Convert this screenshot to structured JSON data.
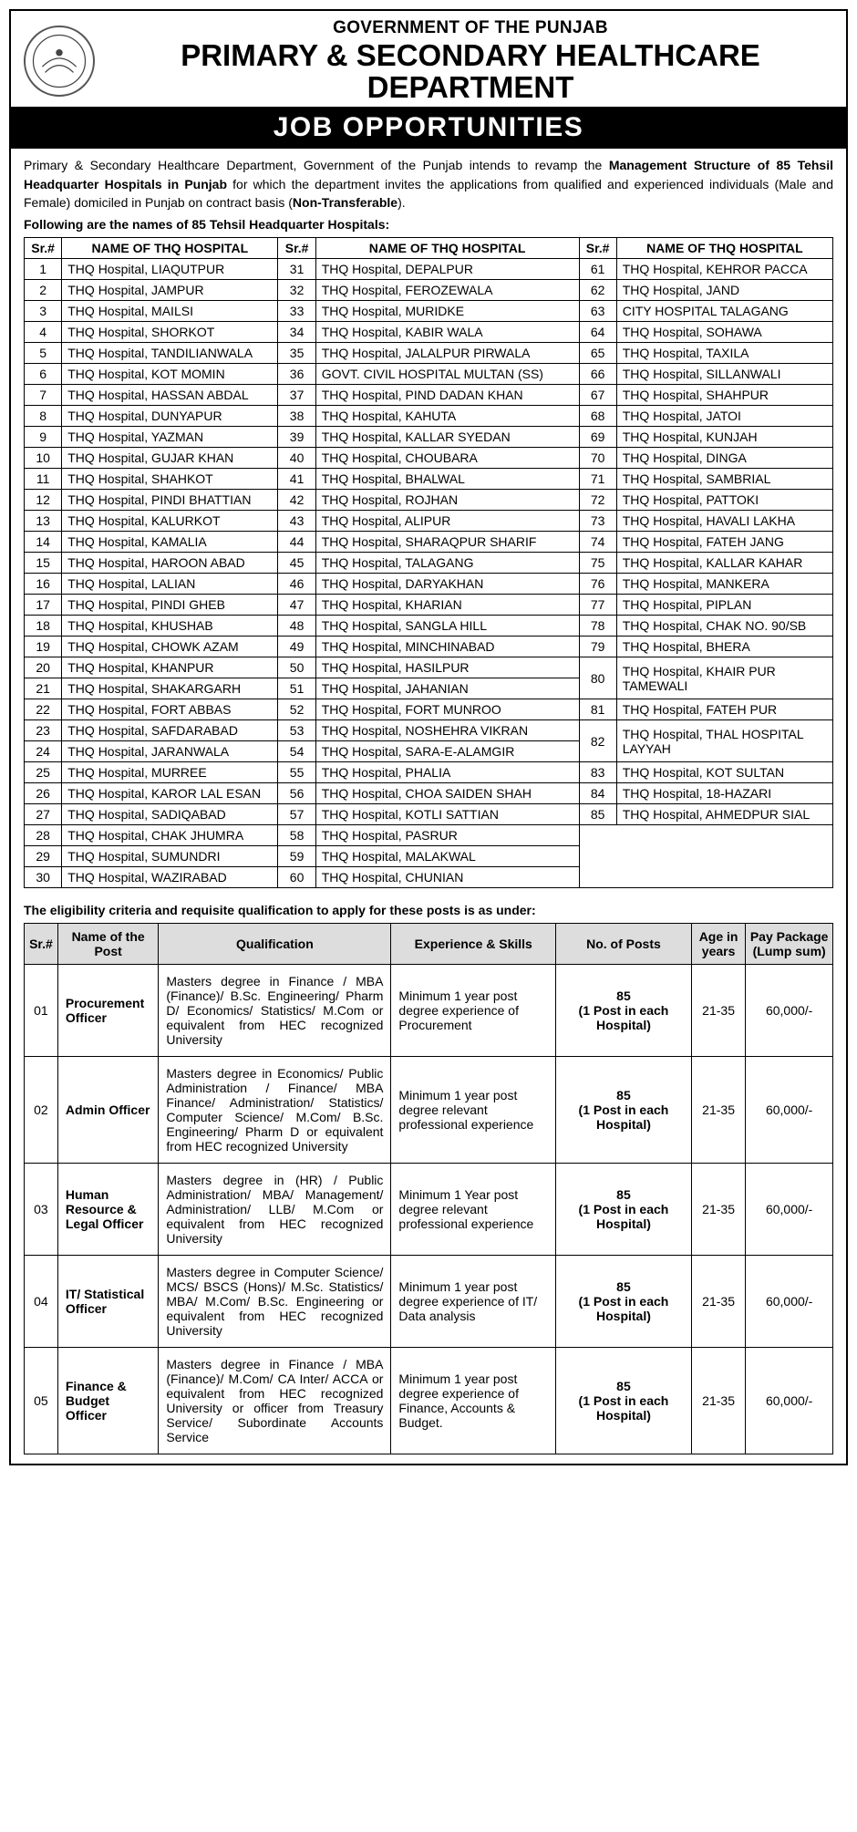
{
  "header": {
    "line1": "GOVERNMENT OF THE PUNJAB",
    "line2": "PRIMARY & SECONDARY HEALTHCARE",
    "line3": "DEPARTMENT",
    "banner": "JOB OPPORTUNITIES"
  },
  "intro_parts": {
    "p1": "Primary & Secondary Healthcare Department, Government of the Punjab intends to revamp the ",
    "b1": "Management Structure of 85 Tehsil Headquarter Hospitals in Punjab",
    "p2": " for which the department invites the applications from qualified and experienced individuals (Male and Female) domiciled in  Punjab on contract basis (",
    "b2": "Non-Transferable",
    "p3": ")."
  },
  "subhead": "Following are the names of 85 Tehsil Headquarter Hospitals:",
  "hosp_headers": {
    "sr": "Sr.#",
    "name": "NAME OF THQ HOSPITAL"
  },
  "hospitals_columns": {
    "col1": [
      {
        "sr": "1",
        "name": "THQ Hospital, LIAQUTPUR"
      },
      {
        "sr": "2",
        "name": "THQ Hospital, JAMPUR"
      },
      {
        "sr": "3",
        "name": "THQ Hospital, MAILSI"
      },
      {
        "sr": "4",
        "name": "THQ Hospital, SHORKOT"
      },
      {
        "sr": "5",
        "name": "THQ Hospital, TANDILIANWALA"
      },
      {
        "sr": "6",
        "name": "THQ Hospital, KOT MOMIN"
      },
      {
        "sr": "7",
        "name": "THQ Hospital, HASSAN ABDAL"
      },
      {
        "sr": "8",
        "name": "THQ Hospital, DUNYAPUR"
      },
      {
        "sr": "9",
        "name": "THQ Hospital, YAZMAN"
      },
      {
        "sr": "10",
        "name": "THQ Hospital, GUJAR KHAN"
      },
      {
        "sr": "11",
        "name": "THQ Hospital, SHAHKOT"
      },
      {
        "sr": "12",
        "name": "THQ Hospital, PINDI BHATTIAN"
      },
      {
        "sr": "13",
        "name": "THQ Hospital, KALURKOT"
      },
      {
        "sr": "14",
        "name": "THQ Hospital, KAMALIA"
      },
      {
        "sr": "15",
        "name": "THQ Hospital, HAROON ABAD"
      },
      {
        "sr": "16",
        "name": "THQ Hospital, LALIAN"
      },
      {
        "sr": "17",
        "name": "THQ Hospital, PINDI GHEB"
      },
      {
        "sr": "18",
        "name": "THQ Hospital, KHUSHAB"
      },
      {
        "sr": "19",
        "name": "THQ Hospital, CHOWK AZAM"
      },
      {
        "sr": "20",
        "name": "THQ Hospital, KHANPUR"
      },
      {
        "sr": "21",
        "name": "THQ Hospital, SHAKARGARH"
      },
      {
        "sr": "22",
        "name": "THQ Hospital, FORT ABBAS"
      },
      {
        "sr": "23",
        "name": "THQ Hospital, SAFDARABAD"
      },
      {
        "sr": "24",
        "name": "THQ Hospital, JARANWALA"
      },
      {
        "sr": "25",
        "name": "THQ Hospital, MURREE"
      },
      {
        "sr": "26",
        "name": "THQ Hospital, KAROR LAL ESAN"
      },
      {
        "sr": "27",
        "name": "THQ Hospital, SADIQABAD"
      },
      {
        "sr": "28",
        "name": "THQ Hospital, CHAK JHUMRA"
      },
      {
        "sr": "29",
        "name": "THQ Hospital, SUMUNDRI"
      },
      {
        "sr": "30",
        "name": "THQ Hospital, WAZIRABAD"
      }
    ],
    "col2": [
      {
        "sr": "31",
        "name": "THQ Hospital, DEPALPUR"
      },
      {
        "sr": "32",
        "name": "THQ Hospital, FEROZEWALA"
      },
      {
        "sr": "33",
        "name": "THQ Hospital, MURIDKE"
      },
      {
        "sr": "34",
        "name": "THQ Hospital, KABIR WALA"
      },
      {
        "sr": "35",
        "name": "THQ Hospital, JALALPUR PIRWALA"
      },
      {
        "sr": "36",
        "name": "GOVT. CIVIL HOSPITAL MULTAN (SS)"
      },
      {
        "sr": "37",
        "name": "THQ Hospital, PIND DADAN KHAN"
      },
      {
        "sr": "38",
        "name": "THQ Hospital, KAHUTA"
      },
      {
        "sr": "39",
        "name": "THQ Hospital, KALLAR SYEDAN"
      },
      {
        "sr": "40",
        "name": "THQ Hospital, CHOUBARA"
      },
      {
        "sr": "41",
        "name": "THQ Hospital, BHALWAL"
      },
      {
        "sr": "42",
        "name": "THQ Hospital, ROJHAN"
      },
      {
        "sr": "43",
        "name": "THQ Hospital, ALIPUR"
      },
      {
        "sr": "44",
        "name": "THQ Hospital, SHARAQPUR SHARIF"
      },
      {
        "sr": "45",
        "name": "THQ Hospital, TALAGANG"
      },
      {
        "sr": "46",
        "name": "THQ Hospital, DARYAKHAN"
      },
      {
        "sr": "47",
        "name": "THQ Hospital, KHARIAN"
      },
      {
        "sr": "48",
        "name": "THQ Hospital, SANGLA HILL"
      },
      {
        "sr": "49",
        "name": "THQ Hospital, MINCHINABAD"
      },
      {
        "sr": "50",
        "name": "THQ Hospital, HASILPUR"
      },
      {
        "sr": "51",
        "name": "THQ Hospital, JAHANIAN"
      },
      {
        "sr": "52",
        "name": "THQ Hospital, FORT MUNROO"
      },
      {
        "sr": "53",
        "name": "THQ Hospital, NOSHEHRA VIKRAN"
      },
      {
        "sr": "54",
        "name": "THQ Hospital, SARA-E-ALAMGIR"
      },
      {
        "sr": "55",
        "name": "THQ Hospital, PHALIA"
      },
      {
        "sr": "56",
        "name": "THQ Hospital, CHOA SAIDEN SHAH"
      },
      {
        "sr": "57",
        "name": "THQ Hospital, KOTLI SATTIAN"
      },
      {
        "sr": "58",
        "name": "THQ Hospital, PASRUR"
      },
      {
        "sr": "59",
        "name": "THQ Hospital, MALAKWAL"
      },
      {
        "sr": "60",
        "name": "THQ Hospital, CHUNIAN"
      }
    ],
    "col3": [
      {
        "sr": "61",
        "name": "THQ Hospital, KEHROR PACCA",
        "rowspan": 1
      },
      {
        "sr": "62",
        "name": "THQ Hospital, JAND",
        "rowspan": 1
      },
      {
        "sr": "63",
        "name": "CITY HOSPITAL TALAGANG",
        "rowspan": 1
      },
      {
        "sr": "64",
        "name": "THQ Hospital, SOHAWA",
        "rowspan": 1
      },
      {
        "sr": "65",
        "name": "THQ Hospital, TAXILA",
        "rowspan": 1
      },
      {
        "sr": "66",
        "name": "THQ Hospital, SILLANWALI",
        "rowspan": 1
      },
      {
        "sr": "67",
        "name": "THQ Hospital, SHAHPUR",
        "rowspan": 1
      },
      {
        "sr": "68",
        "name": "THQ Hospital, JATOI",
        "rowspan": 1
      },
      {
        "sr": "69",
        "name": "THQ Hospital, KUNJAH",
        "rowspan": 1
      },
      {
        "sr": "70",
        "name": "THQ Hospital, DINGA",
        "rowspan": 1
      },
      {
        "sr": "71",
        "name": "THQ Hospital, SAMBRIAL",
        "rowspan": 1
      },
      {
        "sr": "72",
        "name": "THQ Hospital, PATTOKI",
        "rowspan": 1
      },
      {
        "sr": "73",
        "name": "THQ Hospital, HAVALI LAKHA",
        "rowspan": 1
      },
      {
        "sr": "74",
        "name": "THQ Hospital, FATEH JANG",
        "rowspan": 1
      },
      {
        "sr": "75",
        "name": "THQ Hospital, KALLAR KAHAR",
        "rowspan": 1
      },
      {
        "sr": "76",
        "name": "THQ Hospital, MANKERA",
        "rowspan": 1
      },
      {
        "sr": "77",
        "name": "THQ Hospital, PIPLAN",
        "rowspan": 1
      },
      {
        "sr": "78",
        "name": "THQ Hospital, CHAK NO. 90/SB",
        "rowspan": 1
      },
      {
        "sr": "79",
        "name": "THQ Hospital, BHERA",
        "rowspan": 1
      },
      {
        "sr": "80",
        "name": "THQ Hospital, KHAIR PUR TAMEWALI",
        "rowspan": 2
      },
      {
        "sr": "81",
        "name": "THQ Hospital, FATEH PUR",
        "rowspan": 1
      },
      {
        "sr": "82",
        "name": "THQ Hospital, THAL HOSPITAL LAYYAH",
        "rowspan": 2
      },
      {
        "sr": "83",
        "name": "THQ Hospital, KOT SULTAN",
        "rowspan": 1
      },
      {
        "sr": "84",
        "name": "THQ Hospital, 18-HAZARI",
        "rowspan": 1
      },
      {
        "sr": "85",
        "name": "THQ Hospital, AHMEDPUR SIAL",
        "rowspan": 1
      }
    ]
  },
  "elig_head": "The eligibility criteria and requisite qualification to apply for these posts is as under:",
  "posts_headers": {
    "sr": "Sr.#",
    "name": "Name of the Post",
    "qual": "Qualification",
    "exp": "Experience & Skills",
    "num": "No. of Posts",
    "age": "Age in years",
    "pay": "Pay Package (Lump sum)"
  },
  "posts": [
    {
      "sr": "01",
      "name": "Procurement Officer",
      "qual": "Masters degree in Finance / MBA (Finance)/ B.Sc. Engineering/ Pharm D/ Economics/ Statistics/ M.Com or equivalent from HEC recognized University",
      "exp": "Minimum 1 year post degree experience of Procurement",
      "num_bold": "85",
      "num_sub": "(1 Post in each Hospital)",
      "age": "21-35",
      "pay": "60,000/-"
    },
    {
      "sr": "02",
      "name": "Admin Officer",
      "qual": "Masters degree in Economics/ Public Administration / Finance/ MBA Finance/ Administration/ Statistics/ Computer Science/ M.Com/ B.Sc. Engineering/ Pharm D or equivalent from HEC recognized University",
      "exp": "Minimum 1 year post degree relevant professional experience",
      "num_bold": "85",
      "num_sub": "(1 Post in each Hospital)",
      "age": "21-35",
      "pay": "60,000/-"
    },
    {
      "sr": "03",
      "name": "Human Resource & Legal Officer",
      "qual": "Masters degree in (HR) / Public Administration/ MBA/ Management/ Administration/ LLB/ M.Com or equivalent from HEC recognized University",
      "exp": "Minimum 1 Year post degree relevant professional experience",
      "num_bold": "85",
      "num_sub": "(1 Post in each Hospital)",
      "age": "21-35",
      "pay": "60,000/-"
    },
    {
      "sr": "04",
      "name": "IT/ Statistical Officer",
      "qual": "Masters degree in Computer Science/ MCS/ BSCS (Hons)/ M.Sc. Statistics/ MBA/ M.Com/ B.Sc. Engineering or equivalent from HEC recognized University",
      "exp": "Minimum 1 year post degree experience of IT/ Data analysis",
      "num_bold": "85",
      "num_sub": "(1 Post in each Hospital)",
      "age": "21-35",
      "pay": "60,000/-"
    },
    {
      "sr": "05",
      "name": "Finance & Budget Officer",
      "qual": "Masters degree in Finance / MBA (Finance)/  M.Com/ CA Inter/ ACCA or equivalent from HEC recognized University or officer from Treasury Service/ Subordinate Accounts Service",
      "exp": "Minimum 1 year post degree experience of Finance, Accounts & Budget.",
      "num_bold": "85",
      "num_sub": "(1 Post in each Hospital)",
      "age": "21-35",
      "pay": "60,000/-"
    }
  ],
  "colors": {
    "border": "#000000",
    "banner_bg": "#000000",
    "banner_fg": "#ffffff",
    "posts_header_bg": "#dddddd"
  }
}
